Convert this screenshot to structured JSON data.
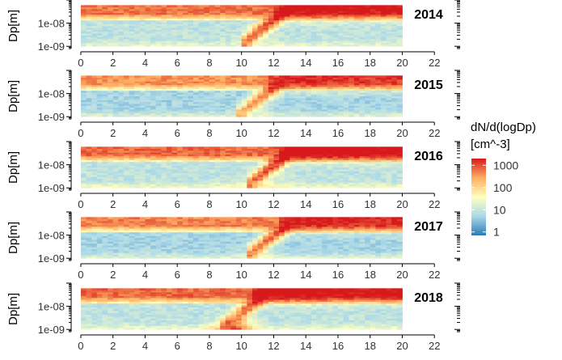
{
  "chart_data": {
    "type": "heatmap",
    "x": {
      "min": 0,
      "max": 20,
      "axis_min": -0.6,
      "axis_max": 23.8,
      "ticks": [
        0,
        2,
        4,
        6,
        8,
        10,
        12,
        14,
        16,
        18,
        20,
        22
      ],
      "tick_labels": [
        "0",
        "2",
        "4",
        "6",
        "8",
        "10",
        "12",
        "14",
        "16",
        "18",
        "20",
        "22"
      ]
    },
    "y": {
      "scale": "log10",
      "ylabel": "Dp[m]",
      "ylim": [
        8e-10,
        1e-07
      ],
      "data_range": [
        1e-09,
        6e-08
      ],
      "ticks": [
        1e-09,
        1e-08
      ],
      "tick_labels": [
        "1e-09",
        "1e-08"
      ]
    },
    "colorbar": {
      "title_line1": "dN/d(logDp)",
      "title_line2": "[cm^-3]",
      "scale": "log10",
      "range": [
        0.7,
        2000
      ],
      "ticks": [
        1,
        10,
        100,
        1000
      ],
      "tick_labels": [
        "1",
        "10",
        "100",
        "1000"
      ],
      "colors": [
        "#2c7bb6",
        "#abd9e9",
        "#ffffbf",
        "#fdae61",
        "#d7191c"
      ]
    },
    "panels": [
      {
        "year": "2014",
        "label": "2014",
        "event_hour": 11.2,
        "upper_bg": 600,
        "lower_bg": 8,
        "small_bg": 25,
        "peak": 1400,
        "peak_hour": 13.0,
        "nucleation_peak": 30
      },
      {
        "year": "2015",
        "label": "2015",
        "event_hour": 11.0,
        "upper_bg": 400,
        "lower_bg": 5,
        "small_bg": 18,
        "peak": 800,
        "peak_hour": 13.0,
        "nucleation_peak": 20
      },
      {
        "year": "2016",
        "label": "2016",
        "event_hour": 11.5,
        "upper_bg": 700,
        "lower_bg": 8,
        "small_bg": 35,
        "peak": 2000,
        "peak_hour": 13.5,
        "nucleation_peak": 60
      },
      {
        "year": "2017",
        "label": "2017",
        "event_hour": 11.5,
        "upper_bg": 500,
        "lower_bg": 5,
        "small_bg": 20,
        "peak": 1000,
        "peak_hour": 13.0,
        "nucleation_peak": 30
      },
      {
        "year": "2018",
        "label": "2018",
        "event_hour": 10.0,
        "upper_bg": 700,
        "lower_bg": 8,
        "small_bg": 30,
        "peak": 1500,
        "peak_hour": 12.5,
        "nucleation_peak": 1200
      }
    ]
  }
}
